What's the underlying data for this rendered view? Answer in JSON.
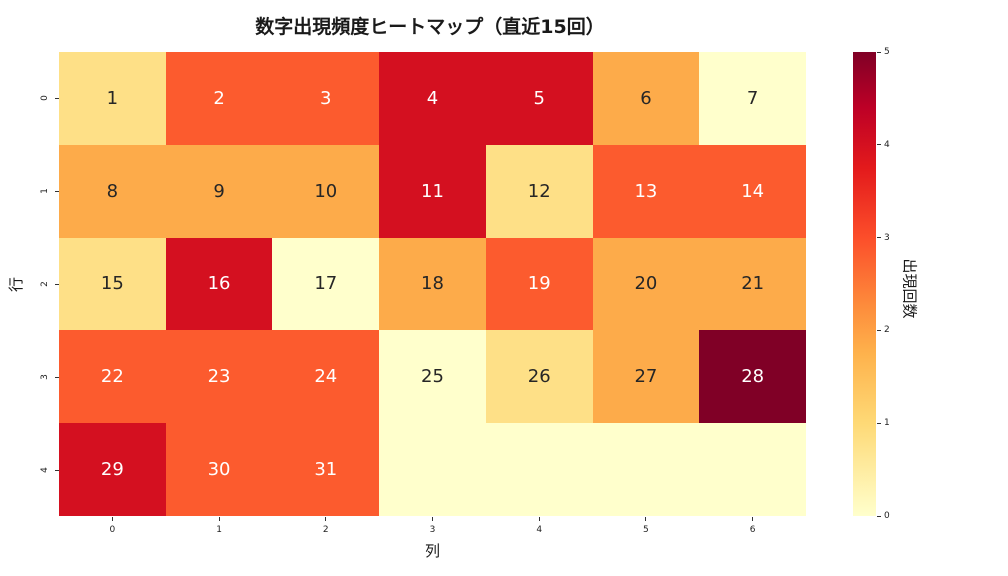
{
  "chart_data": {
    "type": "heatmap",
    "title": "数字出現頻度ヒートマップ（直近15回）",
    "xlabel": "列",
    "ylabel": "行",
    "x_ticks": [
      "0",
      "1",
      "2",
      "3",
      "4",
      "5",
      "6"
    ],
    "y_ticks": [
      "0",
      "1",
      "2",
      "3",
      "4"
    ],
    "colorbar": {
      "label": "出現回数",
      "ticks": [
        "0",
        "1",
        "2",
        "3",
        "4",
        "5"
      ],
      "range": [
        0,
        5
      ],
      "colormap": "YlOrRd"
    },
    "annotations": [
      [
        "1",
        "2",
        "3",
        "4",
        "5",
        "6",
        "7"
      ],
      [
        "8",
        "9",
        "10",
        "11",
        "12",
        "13",
        "14"
      ],
      [
        "15",
        "16",
        "17",
        "18",
        "19",
        "20",
        "21"
      ],
      [
        "22",
        "23",
        "24",
        "25",
        "26",
        "27",
        "28"
      ],
      [
        "29",
        "30",
        "31",
        "",
        "",
        "",
        ""
      ]
    ],
    "values": [
      [
        1,
        3,
        3,
        4,
        4,
        2,
        0
      ],
      [
        2,
        2,
        2,
        4,
        1,
        3,
        3
      ],
      [
        1,
        4,
        0,
        2,
        3,
        2,
        2
      ],
      [
        3,
        3,
        3,
        0,
        1,
        2,
        5
      ],
      [
        4,
        3,
        3,
        0,
        0,
        0,
        0
      ]
    ],
    "colors": {
      "0": "#ffffcc",
      "1": "#fee087",
      "2": "#fdab4a",
      "3": "#fc5b2e",
      "4": "#d41020",
      "5": "#800026"
    }
  }
}
